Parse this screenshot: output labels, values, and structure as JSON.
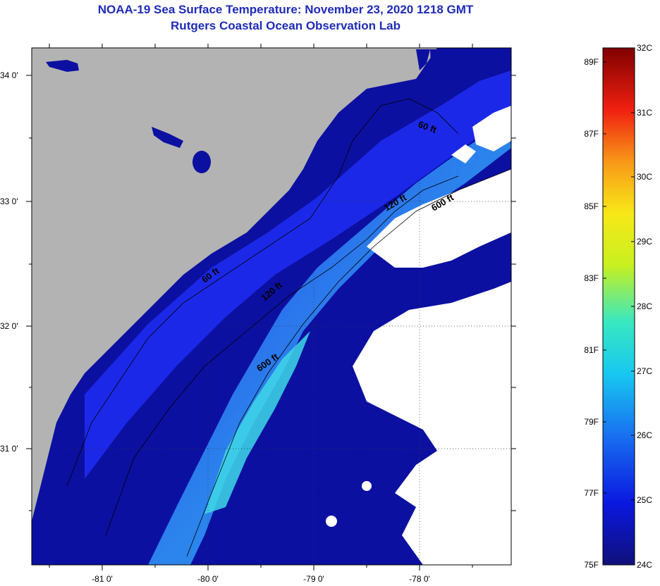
{
  "title": {
    "line1": "NOAA-19 Sea Surface Temperature:  November 23, 2020 1218 GMT",
    "line2": "Rutgers Coastal Ocean Observation Lab"
  },
  "map": {
    "lon_ticks": [
      "-81 0'",
      "-80 0'",
      "-79 0'",
      "-78 0'"
    ],
    "lat_ticks": [
      "34 0'",
      "33 0'",
      "32 0'",
      "31 0'"
    ],
    "depth_labels": [
      "60 ft",
      "120 ft",
      "600 ft",
      "60 ft",
      "120 ft",
      "600 ft"
    ],
    "colors": {
      "land": "#b3b3b3",
      "ocean_cold": "#0c10a0",
      "cloud": "#ffffff"
    }
  },
  "colorbar": {
    "fahrenheit": [
      "89F",
      "87F",
      "85F",
      "83F",
      "81F",
      "79F",
      "77F",
      "75F"
    ],
    "celsius": [
      "32C",
      "31C",
      "30C",
      "29C",
      "28C",
      "27C",
      "26C",
      "25C",
      "24C"
    ]
  }
}
